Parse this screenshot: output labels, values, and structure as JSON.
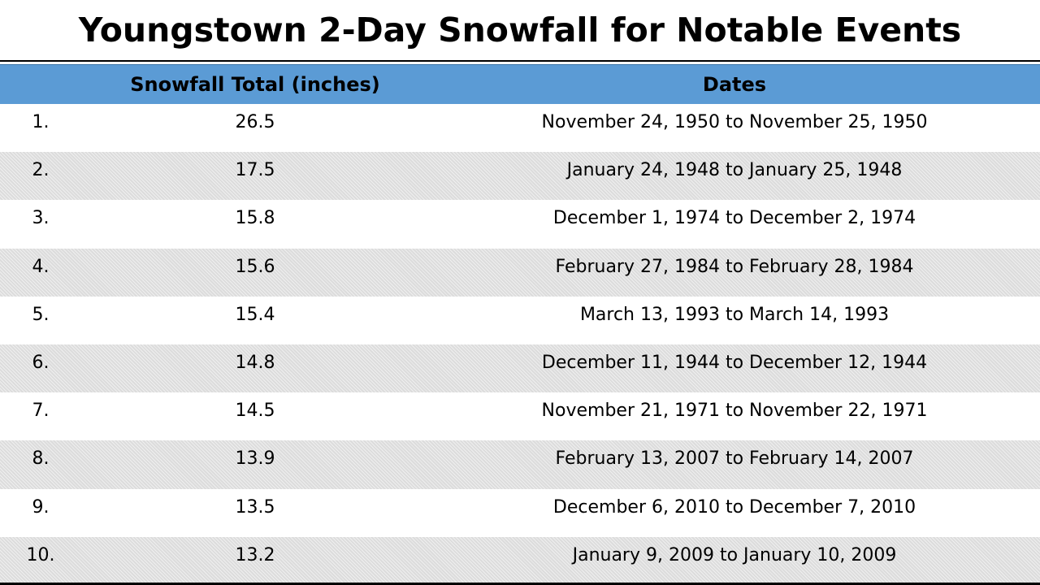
{
  "title": "Youngstown 2-Day Snowfall for Notable Events",
  "table": {
    "headers": {
      "rank": "",
      "total": "Snowfall Total (inches)",
      "dates": "Dates"
    },
    "rows": [
      {
        "rank": "1.",
        "total": "26.5",
        "dates": "November 24, 1950 to November 25, 1950"
      },
      {
        "rank": "2.",
        "total": "17.5",
        "dates": "January 24, 1948 to January 25, 1948"
      },
      {
        "rank": "3.",
        "total": "15.8",
        "dates": "December 1, 1974 to December 2, 1974"
      },
      {
        "rank": "4.",
        "total": "15.6",
        "dates": "February 27, 1984 to February 28, 1984"
      },
      {
        "rank": "5.",
        "total": "15.4",
        "dates": "March 13, 1993 to March 14, 1993"
      },
      {
        "rank": "6.",
        "total": "14.8",
        "dates": "December 11, 1944 to December 12, 1944"
      },
      {
        "rank": "7.",
        "total": "14.5",
        "dates": "November 21, 1971 to November 22, 1971"
      },
      {
        "rank": "8.",
        "total": "13.9",
        "dates": "February 13, 2007 to February 14, 2007"
      },
      {
        "rank": "9.",
        "total": "13.5",
        "dates": "December 6, 2010 to December 7, 2010"
      },
      {
        "rank": "10.",
        "total": "13.2",
        "dates": "January 9, 2009 to January 10, 2009"
      }
    ]
  },
  "colors": {
    "header_background": "#5b9bd5",
    "shaded_row": "#dcdcdc",
    "text": "#000000"
  }
}
